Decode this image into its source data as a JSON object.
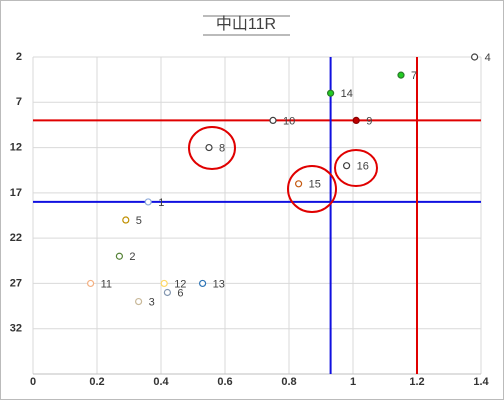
{
  "chart_data": {
    "type": "scatter",
    "title": "中山11R",
    "x": [
      1.38,
      1.15,
      0.93,
      0.75,
      1.01,
      0.55,
      0.98,
      0.83,
      0.36,
      0.29,
      0.27,
      0.18,
      0.41,
      0.53,
      0.42,
      0.33
    ],
    "values": [
      2,
      4,
      6,
      9,
      9,
      12,
      14,
      16,
      18,
      20,
      24,
      27,
      27,
      27,
      28,
      29
    ],
    "labels": [
      "4",
      "7",
      "14",
      "10",
      "9",
      "8",
      "16",
      "15",
      "1",
      "5",
      "2",
      "11",
      "12",
      "13",
      "6",
      "3"
    ],
    "colors": [
      "#404040",
      "#2a7a2a",
      "#2a7a2a",
      "#404040",
      "#8b0000",
      "#404040",
      "#404040",
      "#c55a11",
      "#8eaadb",
      "#bf8f00",
      "#548235",
      "#f4b183",
      "#ffd966",
      "#2e75b6",
      "#8497b0",
      "#c9b99a"
    ],
    "fills": [
      "none",
      "#22cc22",
      "#22cc22",
      "none",
      "#c00000",
      "none",
      "none",
      "none",
      "none",
      "none",
      "none",
      "none",
      "none",
      "none",
      "none",
      "none"
    ],
    "xlim": [
      0,
      1.4
    ],
    "xticks": [
      0,
      0.2,
      0.4,
      0.6,
      0.8,
      1,
      1.2,
      1.4
    ],
    "ylim": [
      2,
      37
    ],
    "yticks": [
      2,
      7,
      12,
      17,
      22,
      27,
      32
    ],
    "y_reversed": true,
    "grid": true,
    "reference_lines": [
      {
        "axis": "y",
        "value": 9,
        "color": "#e00000"
      },
      {
        "axis": "y",
        "value": 18,
        "color": "#1010e0"
      },
      {
        "axis": "x",
        "value": 0.93,
        "color": "#1010e0"
      },
      {
        "axis": "x",
        "value": 1.2,
        "color": "#e00000"
      }
    ]
  }
}
